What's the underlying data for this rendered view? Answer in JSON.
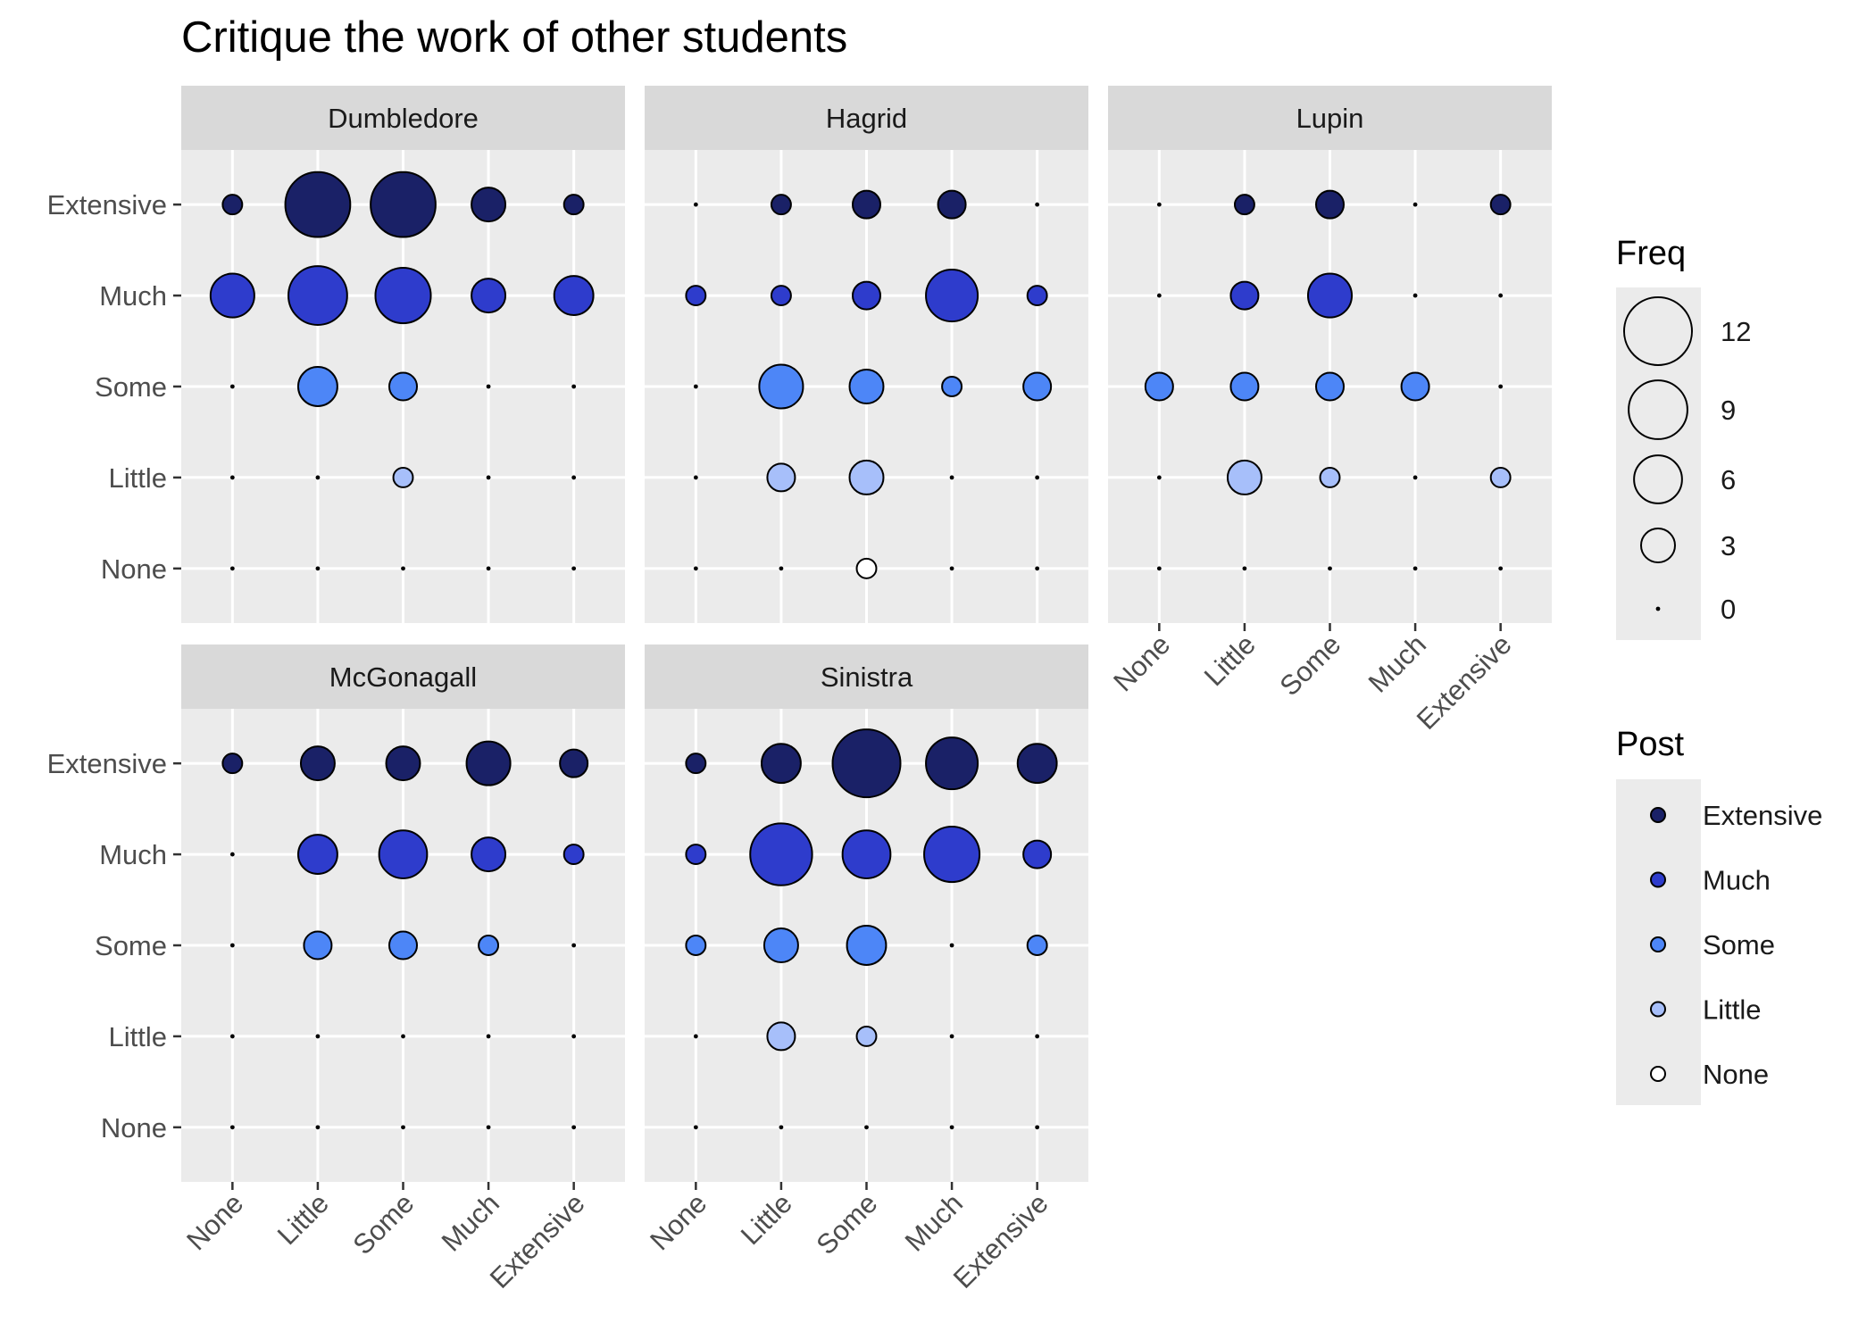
{
  "chart_data": {
    "type": "scatter",
    "title": "Critique the work of other students",
    "levels": [
      "None",
      "Little",
      "Some",
      "Much",
      "Extensive"
    ],
    "xlabel": "",
    "ylabel": "",
    "facets": [
      {
        "name": "Dumbledore",
        "counts": {
          "Extensive": [
            1,
            11,
            11,
            3,
            1
          ],
          "Much": [
            5,
            9,
            8,
            3,
            4
          ],
          "Some": [
            0,
            4,
            2,
            0,
            0
          ],
          "Little": [
            0,
            0,
            1,
            0,
            0
          ],
          "None": [
            0,
            0,
            0,
            0,
            0
          ]
        }
      },
      {
        "name": "Hagrid",
        "counts": {
          "Extensive": [
            0,
            1,
            2,
            2,
            0
          ],
          "Much": [
            1,
            1,
            2,
            7,
            1
          ],
          "Some": [
            0,
            5,
            3,
            1,
            2
          ],
          "Little": [
            0,
            2,
            3,
            0,
            0
          ],
          "None": [
            0,
            0,
            1,
            0,
            0
          ]
        }
      },
      {
        "name": "Lupin",
        "counts": {
          "Extensive": [
            0,
            1,
            2,
            0,
            1
          ],
          "Much": [
            0,
            2,
            5,
            0,
            0
          ],
          "Some": [
            2,
            2,
            2,
            2,
            0
          ],
          "Little": [
            0,
            3,
            1,
            0,
            1
          ],
          "None": [
            0,
            0,
            0,
            0,
            0
          ]
        }
      },
      {
        "name": "McGonagall",
        "counts": {
          "Extensive": [
            1,
            3,
            3,
            5,
            2
          ],
          "Much": [
            0,
            4,
            6,
            3,
            1
          ],
          "Some": [
            0,
            2,
            2,
            1,
            0
          ],
          "Little": [
            0,
            0,
            0,
            0,
            0
          ],
          "None": [
            0,
            0,
            0,
            0,
            0
          ]
        }
      },
      {
        "name": "Sinistra",
        "counts": {
          "Extensive": [
            1,
            4,
            12,
            7,
            4
          ],
          "Much": [
            1,
            10,
            6,
            8,
            2
          ],
          "Some": [
            1,
            3,
            4,
            0,
            1
          ],
          "Little": [
            0,
            2,
            1,
            0,
            0
          ],
          "None": [
            0,
            0,
            0,
            0,
            0
          ]
        }
      }
    ],
    "size_legend": {
      "title": "Freq",
      "breaks": [
        12,
        9,
        6,
        3,
        0
      ]
    },
    "color_legend": {
      "title": "Post",
      "entries": [
        "Extensive",
        "Much",
        "Some",
        "Little",
        "None"
      ]
    },
    "colors": {
      "Extensive": "#1a2167",
      "Much": "#2e3ccc",
      "Some": "#4d86f7",
      "Little": "#a7bffa",
      "None": "#ffffff"
    },
    "grid": true,
    "legend_position": "right"
  }
}
